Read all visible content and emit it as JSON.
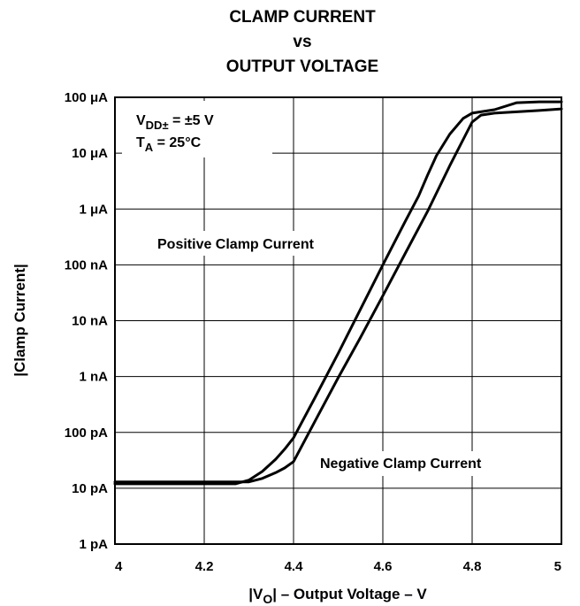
{
  "chart_data": {
    "type": "line",
    "title_lines": [
      "CLAMP CURRENT",
      "vs",
      "OUTPUT VOLTAGE"
    ],
    "xlabel": {
      "pre": "|V",
      "sub": "O",
      "post": "| – Output Voltage – V"
    },
    "ylabel": "|Clamp Current|",
    "xlim": [
      4,
      5
    ],
    "ylim": [
      1e-12,
      0.0001
    ],
    "yscale": "log",
    "grid": true,
    "x_ticks": [
      4,
      4.2,
      4.4,
      4.6,
      4.8,
      5
    ],
    "x_tick_labels": [
      "4",
      "4.2",
      "4.4",
      "4.6",
      "4.8",
      "5"
    ],
    "y_ticks": [
      1e-12,
      1e-11,
      1e-10,
      1e-09,
      1e-08,
      1e-07,
      1e-06,
      1e-05,
      0.0001
    ],
    "y_tick_labels": [
      "1 pA",
      "10 pA",
      "100 pA",
      "1 nA",
      "10 nA",
      "100 nA",
      "1 μA",
      "10 μA",
      "100 μA"
    ],
    "conditions": {
      "line1": {
        "pre": "V",
        "sub": "DD±",
        "post": " = ±5 V"
      },
      "line2": {
        "pre": "T",
        "sub": "A",
        "post": " = 25°C"
      }
    },
    "series": [
      {
        "name": "Positive Clamp Current",
        "x": [
          4.0,
          4.2,
          4.27,
          4.3,
          4.33,
          4.36,
          4.38,
          4.4,
          4.45,
          4.5,
          4.55,
          4.6,
          4.65,
          4.68,
          4.7,
          4.72,
          4.75,
          4.78,
          4.8,
          4.85,
          4.9,
          4.95,
          5.0
        ],
        "y": [
          1.2e-11,
          1.2e-11,
          1.2e-11,
          1.4e-11,
          2e-11,
          3.3e-11,
          5e-11,
          8e-11,
          4.5e-10,
          2.6e-09,
          1.6e-08,
          1e-07,
          6e-07,
          1.7e-06,
          4e-06,
          9e-06,
          2.2e-05,
          4.2e-05,
          5.2e-05,
          6e-05,
          8e-05,
          8.3e-05,
          8.3e-05
        ]
      },
      {
        "name": "Negative Clamp Current",
        "x": [
          4.0,
          4.25,
          4.3,
          4.33,
          4.36,
          4.38,
          4.4,
          4.45,
          4.5,
          4.55,
          4.6,
          4.65,
          4.7,
          4.75,
          4.8,
          4.82,
          4.85,
          4.9,
          4.95,
          5.0
        ],
        "y": [
          1.3e-11,
          1.3e-11,
          1.3e-11,
          1.5e-11,
          1.9e-11,
          2.3e-11,
          3e-11,
          1.7e-10,
          9.5e-10,
          5e-09,
          2.8e-08,
          1.6e-07,
          9e-07,
          6e-06,
          3.6e-05,
          4.8e-05,
          5.2e-05,
          5.5e-05,
          5.8e-05,
          6.2e-05
        ]
      }
    ]
  }
}
